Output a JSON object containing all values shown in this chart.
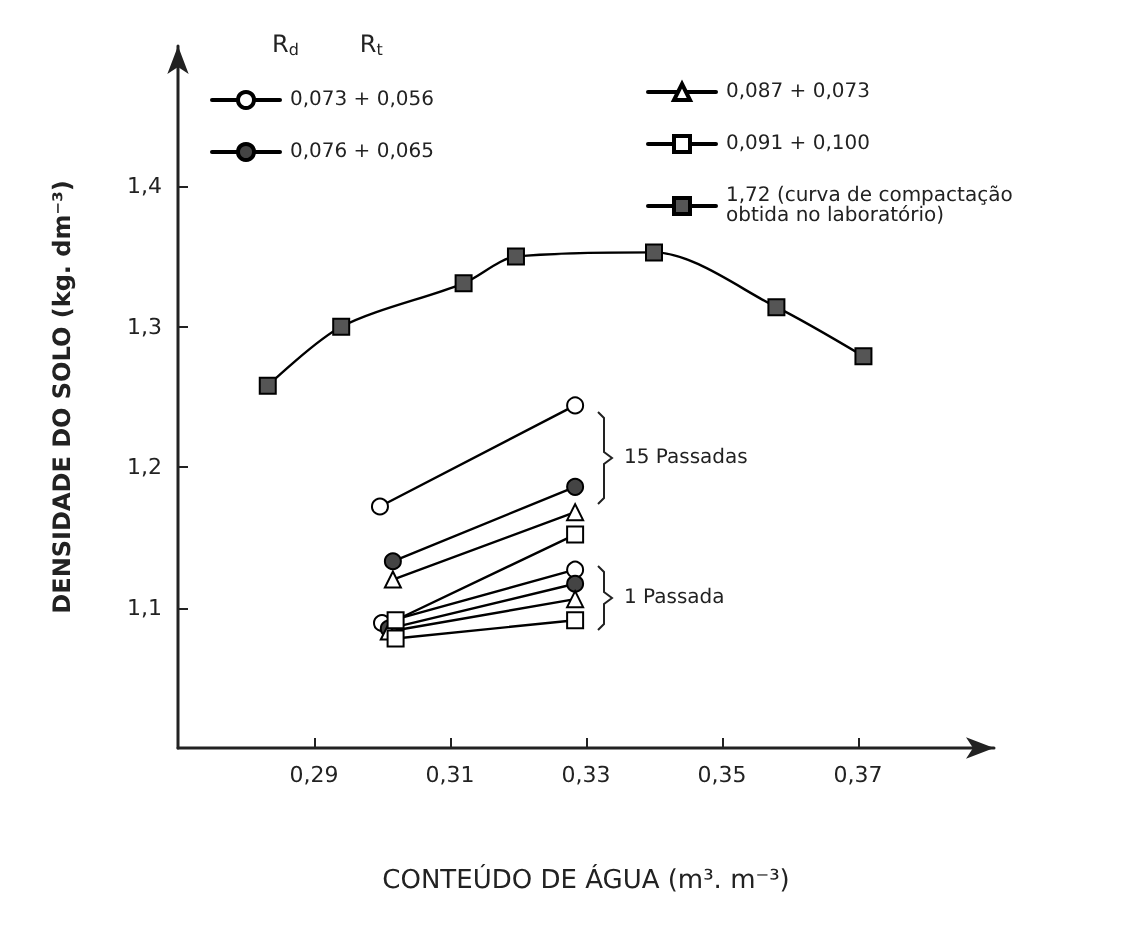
{
  "chart_data": {
    "type": "line",
    "xlabel": "CONTEÚDO DE ÁGUA (m³. m⁻³)",
    "ylabel": "DENSIDADE DO SOLO (kg. dm⁻³)",
    "legend_title": "R$_{d}$        R$_{t}$",
    "xlim": [
      0.27,
      0.39
    ],
    "ylim": [
      1.0,
      1.5
    ],
    "xticks": [
      {
        "value": 0.29,
        "label": "0,29"
      },
      {
        "value": 0.31,
        "label": "0,31"
      },
      {
        "value": 0.33,
        "label": "0,33"
      },
      {
        "value": 0.35,
        "label": "0,35"
      },
      {
        "value": 0.37,
        "label": "0,37"
      }
    ],
    "yticks": [
      {
        "value": 1.1,
        "label": "1,1"
      },
      {
        "value": 1.2,
        "label": "1,2"
      },
      {
        "value": 1.3,
        "label": "1,3"
      },
      {
        "value": 1.4,
        "label": "1,4"
      }
    ],
    "grid": false,
    "legend": "top",
    "line_style": "solid",
    "series": [
      {
        "name": "0,073 + 0,056",
        "color": "#ffffff",
        "marker": "circle",
        "x": [
          0.3,
          0.3284
        ],
        "values": [
          1.089,
          1.127
        ]
      },
      {
        "color": "#ffffff",
        "marker": "circle",
        "x": [
          0.2997,
          0.3284
        ],
        "values": [
          1.172,
          1.244
        ]
      },
      {
        "name": "0,076 + 0,065",
        "color": "#444444",
        "marker": "circle",
        "x": [
          0.301,
          0.3284
        ],
        "values": [
          1.085,
          1.117
        ]
      },
      {
        "color": "#444444",
        "marker": "circle",
        "x": [
          0.3016,
          0.3284
        ],
        "values": [
          1.133,
          1.186
        ]
      },
      {
        "name": "0,087 + 0,073",
        "color": "#ffffff",
        "marker": "triangle",
        "x": [
          0.301,
          0.3284
        ],
        "values": [
          1.083,
          1.106
        ]
      },
      {
        "color": "#ffffff",
        "marker": "triangle",
        "x": [
          0.3016,
          0.3284
        ],
        "values": [
          1.12,
          1.168
        ]
      },
      {
        "name": "0,091 + 0,100",
        "color": "#ffffff",
        "marker": "square",
        "x": [
          0.302,
          0.3284
        ],
        "values": [
          1.078,
          1.091
        ]
      },
      {
        "color": "#ffffff",
        "marker": "square",
        "x": [
          0.302,
          0.3284
        ],
        "values": [
          1.091,
          1.152
        ]
      },
      {
        "name": "1,72 (curva de compactação obtida no laboratório)",
        "color": "#555555",
        "marker": "square",
        "x": [
          0.2832,
          0.294,
          0.312,
          0.3197,
          0.34,
          0.358,
          0.3708
        ],
        "values": [
          1.258,
          1.3,
          1.331,
          1.35,
          1.353,
          1.314,
          1.279
        ]
      }
    ],
    "annotations": [
      "15 Passadas",
      "1 Passada"
    ]
  }
}
